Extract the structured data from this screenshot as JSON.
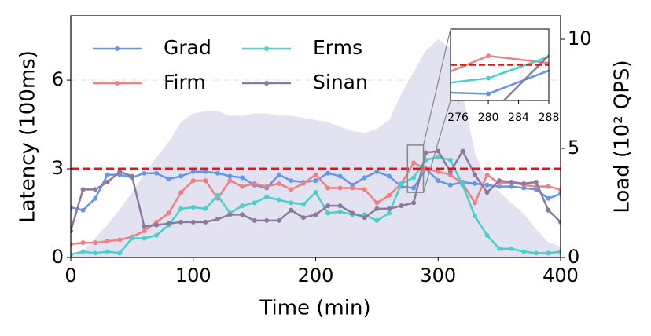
{
  "chart_data": {
    "type": "line",
    "xlabel": "Time (min)",
    "ylabel": "Latency (100ms)",
    "y2label": "Load (10² QPS)",
    "x": [
      0,
      10,
      20,
      30,
      40,
      50,
      60,
      70,
      80,
      90,
      100,
      110,
      120,
      130,
      140,
      150,
      160,
      170,
      180,
      190,
      200,
      210,
      220,
      230,
      240,
      250,
      260,
      270,
      280,
      290,
      300,
      310,
      320,
      330,
      340,
      350,
      360,
      370,
      380,
      390,
      400
    ],
    "xlim": [
      0,
      400
    ],
    "xticks": [
      0,
      100,
      200,
      300,
      400
    ],
    "ylim": [
      0,
      8.18
    ],
    "yticks": [
      0,
      3,
      6
    ],
    "y2lim": [
      0,
      11.08
    ],
    "y2ticks": [
      0,
      5,
      10
    ],
    "grid": true,
    "legend": "upper left",
    "slo": {
      "value": 3,
      "color": "#ee1111"
    },
    "load": {
      "axis": "y2",
      "color": "#e2e2f0",
      "values": [
        0,
        0.3,
        0.9,
        1.5,
        2.2,
        3.0,
        3.8,
        4.6,
        5.3,
        6.2,
        6.6,
        6.7,
        6.7,
        6.5,
        6.5,
        6.6,
        6.6,
        6.5,
        6.5,
        6.4,
        6.3,
        6.2,
        6.0,
        5.8,
        5.7,
        5.9,
        6.3,
        7.5,
        8.5,
        9.5,
        10.0,
        9.6,
        7.5,
        4.8,
        3.5,
        3.0,
        2.5,
        2.0,
        1.3,
        0.7,
        0.5
      ]
    },
    "series": [
      {
        "name": "Grad",
        "color": "#6495ed",
        "values": [
          1.7,
          1.6,
          2.0,
          2.8,
          2.8,
          2.7,
          2.85,
          2.85,
          2.65,
          2.75,
          2.9,
          2.9,
          2.85,
          2.75,
          2.7,
          2.45,
          2.35,
          2.8,
          2.6,
          2.55,
          2.6,
          2.85,
          2.75,
          2.45,
          2.7,
          2.9,
          2.75,
          2.4,
          2.35,
          3.0,
          2.6,
          2.45,
          2.55,
          2.5,
          2.45,
          2.4,
          2.4,
          2.35,
          2.3,
          2.0,
          2.15
        ]
      },
      {
        "name": "Firm",
        "color": "#f08080",
        "values": [
          0.45,
          0.5,
          0.5,
          0.55,
          0.6,
          0.7,
          0.9,
          1.2,
          1.5,
          2.2,
          2.6,
          2.6,
          2.0,
          2.6,
          2.4,
          2.5,
          2.4,
          2.5,
          2.3,
          2.5,
          2.8,
          2.35,
          2.35,
          2.35,
          2.3,
          1.85,
          2.1,
          2.5,
          3.2,
          3.0,
          2.9,
          2.8,
          2.5,
          1.85,
          2.8,
          2.5,
          2.55,
          2.45,
          2.4,
          2.4,
          2.3
        ]
      },
      {
        "name": "Erms",
        "color": "#48d1cc",
        "values": [
          0.1,
          0.2,
          0.15,
          0.2,
          0.15,
          0.65,
          0.65,
          0.75,
          1.1,
          1.65,
          1.7,
          1.65,
          2.1,
          1.5,
          1.75,
          1.85,
          2.05,
          1.95,
          1.85,
          1.8,
          2.2,
          1.5,
          1.55,
          1.45,
          1.45,
          1.25,
          1.5,
          2.5,
          2.7,
          3.3,
          3.4,
          3.3,
          2.45,
          1.4,
          0.75,
          0.3,
          0.3,
          0.2,
          0.15,
          0.15,
          0.2
        ]
      },
      {
        "name": "Sinan",
        "color": "#8b7a9b",
        "values": [
          0.9,
          2.3,
          2.3,
          2.55,
          2.9,
          2.75,
          1.05,
          1.1,
          1.15,
          1.2,
          1.2,
          1.2,
          1.3,
          1.45,
          1.45,
          1.25,
          1.25,
          1.25,
          1.6,
          1.35,
          1.45,
          1.75,
          1.75,
          1.5,
          1.35,
          1.65,
          1.65,
          1.75,
          1.85,
          3.55,
          3.6,
          2.9,
          3.6,
          2.8,
          2.2,
          2.6,
          2.55,
          2.5,
          2.55,
          1.6,
          1.2
        ]
      }
    ],
    "inset": {
      "xlim": [
        275,
        288
      ],
      "xticks": [
        276,
        280,
        284,
        288
      ],
      "ylim": [
        2.2,
        3.8
      ]
    }
  }
}
